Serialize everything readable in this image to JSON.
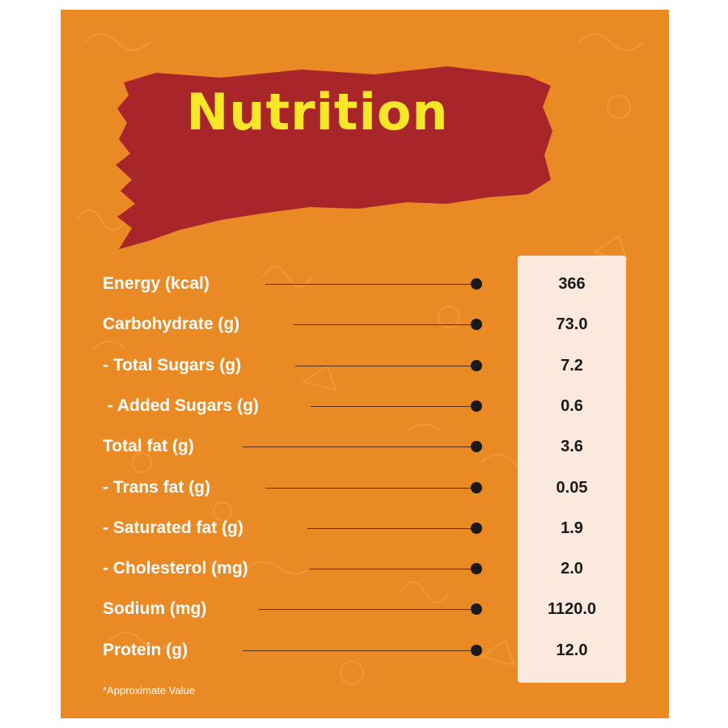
{
  "title": "Nutrition",
  "rows": [
    {
      "label": "Energy (kcal)",
      "value": "366"
    },
    {
      "label": "Carbohydrate (g)",
      "value": "73.0"
    },
    {
      "label": "- Total Sugars (g)",
      "value": "7.2"
    },
    {
      "label": " - Added Sugars (g)",
      "value": "0.6"
    },
    {
      "label": "Total fat (g)",
      "value": "3.6"
    },
    {
      "label": "- Trans fat (g)",
      "value": "0.05"
    },
    {
      "label": "- Saturated fat (g)",
      "value": "1.9"
    },
    {
      "label": "- Cholesterol (mg)",
      "value": "2.0"
    },
    {
      "label": "Sodium (mg)",
      "value": "1120.0"
    },
    {
      "label": "Protein (g)",
      "value": "12.0"
    }
  ],
  "footnote": "*Approximate Value",
  "colors": {
    "background": "#ea8a25",
    "banner": "#a8262a",
    "title": "#f6e829",
    "value_box": "#fae9dc"
  }
}
